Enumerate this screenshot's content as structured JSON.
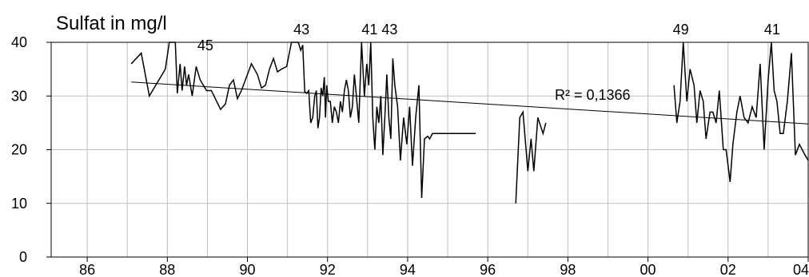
{
  "chart_data": {
    "type": "line",
    "title": "Sulfat in mg/l",
    "xlabel": "",
    "ylabel": "Sulfat in mg/l",
    "xlim": [
      1985.1,
      2004.0
    ],
    "ylim": [
      0,
      40
    ],
    "x_ticks": [
      {
        "value": 1986,
        "label": "86"
      },
      {
        "value": 1988,
        "label": "88"
      },
      {
        "value": 1990,
        "label": "90"
      },
      {
        "value": 1992,
        "label": "92"
      },
      {
        "value": 1994,
        "label": "94"
      },
      {
        "value": 1996,
        "label": "96"
      },
      {
        "value": 1998,
        "label": "98"
      },
      {
        "value": 2000,
        "label": "00"
      },
      {
        "value": 2002,
        "label": "02"
      },
      {
        "value": 2004,
        "label": "04"
      }
    ],
    "y_ticks": [
      {
        "value": 0,
        "label": "0"
      },
      {
        "value": 10,
        "label": "10"
      },
      {
        "value": 20,
        "label": "20"
      },
      {
        "value": 30,
        "label": "30"
      },
      {
        "value": 40,
        "label": "40"
      }
    ],
    "grid": true,
    "segments": [
      {
        "x": [
          1987.1,
          1987.35,
          1987.55,
          1987.95,
          1988.05,
          1988.2,
          1988.25,
          1988.32,
          1988.37,
          1988.43,
          1988.48,
          1988.53,
          1988.62,
          1988.72,
          1988.82,
          1988.98,
          1989.1,
          1989.2,
          1989.33,
          1989.45,
          1989.55,
          1989.65,
          1989.75,
          1989.85,
          1989.95,
          1990.1,
          1990.25,
          1990.35,
          1990.45,
          1990.55,
          1990.65,
          1990.75,
          1990.85,
          1990.98,
          1991.1,
          1991.2,
          1991.27,
          1991.33,
          1991.38,
          1991.43,
          1991.48,
          1991.53,
          1991.58,
          1991.63,
          1991.68,
          1991.72,
          1991.76,
          1991.8,
          1991.84,
          1991.88,
          1991.92,
          1991.95,
          1991.98,
          1992.02,
          1992.07,
          1992.12,
          1992.17,
          1992.22,
          1992.27,
          1992.32,
          1992.37,
          1992.42,
          1992.47,
          1992.52,
          1992.57,
          1992.62,
          1992.67,
          1992.72,
          1992.78,
          1992.85,
          1992.92,
          1992.98,
          1993.03,
          1993.08,
          1993.13,
          1993.18,
          1993.23,
          1993.28,
          1993.33,
          1993.38,
          1993.43,
          1993.48,
          1993.53,
          1993.58,
          1993.63,
          1993.68,
          1993.75,
          1993.82,
          1993.9,
          1993.98,
          1994.05,
          1994.12,
          1994.2,
          1994.28,
          1994.35,
          1994.42,
          1994.5,
          1994.55,
          1994.62,
          1994.7,
          1994.78,
          1994.85,
          1994.92,
          1995.0,
          1995.07,
          1995.15,
          1995.22,
          1995.3,
          1995.38,
          1995.45,
          1995.55,
          1995.7
        ],
        "y": [
          36,
          38,
          30,
          35,
          41,
          41,
          30.5,
          36,
          31,
          35.5,
          32,
          34,
          30,
          35.5,
          33,
          31,
          31,
          29.5,
          27.5,
          28.5,
          32,
          33,
          29.5,
          31,
          33,
          36,
          34,
          31.5,
          32,
          35,
          37,
          34.5,
          35,
          35.5,
          41,
          41,
          40,
          38.5,
          39.5,
          30.8,
          30.5,
          31,
          25,
          26,
          30,
          31,
          24,
          26,
          31.5,
          30,
          33.5,
          26,
          32,
          29,
          29,
          25,
          28,
          27,
          25,
          29,
          27,
          31,
          33,
          31,
          26,
          28,
          34,
          30,
          25,
          40,
          30,
          36,
          32,
          42,
          26,
          20,
          28,
          25,
          30,
          19,
          26,
          34,
          26,
          22,
          37,
          32,
          28,
          18,
          26,
          21,
          28,
          17,
          26,
          32,
          11,
          22,
          22.5,
          22,
          23,
          23,
          23,
          23,
          23,
          23,
          23,
          23,
          23,
          23,
          23,
          23,
          23,
          23
        ]
      },
      {
        "x": [
          1996.7,
          1996.8,
          1996.88,
          1997.0,
          1997.08,
          1997.15,
          1997.25,
          1997.38,
          1997.45
        ],
        "y": [
          10,
          26,
          27,
          16,
          22,
          16,
          26,
          23,
          25
        ]
      },
      {
        "x": [
          2000.65,
          2000.72,
          2000.8,
          2000.88,
          2000.97,
          2001.05,
          2001.15,
          2001.22,
          2001.3,
          2001.38,
          2001.45,
          2001.55,
          2001.62,
          2001.7,
          2001.78,
          2001.88,
          2001.95,
          2002.05,
          2002.12,
          2002.22,
          2002.3,
          2002.4,
          2002.5,
          2002.6,
          2002.7,
          2002.8,
          2002.9,
          2003.0,
          2003.08,
          2003.15,
          2003.22,
          2003.3,
          2003.38,
          2003.48,
          2003.58,
          2003.68,
          2003.78,
          2003.85,
          2003.92,
          2004.0
        ],
        "y": [
          32,
          25,
          29,
          40,
          29,
          35,
          32,
          25,
          31,
          29,
          22,
          27,
          27,
          25,
          31,
          20,
          20,
          14,
          21,
          27,
          30,
          26,
          25,
          28,
          26,
          36,
          20,
          33,
          41,
          31,
          29,
          23,
          23,
          29,
          38,
          19,
          21,
          20,
          19,
          18
        ]
      }
    ],
    "trendline": {
      "label": "R² = 0,1366",
      "x": [
        1987.1,
        2004.0
      ],
      "y": [
        32.6,
        24.8
      ]
    },
    "annotations": [
      {
        "text": "45",
        "x": 1988.95,
        "y": 41
      },
      {
        "text": "43",
        "x": 1991.35,
        "y": 43
      },
      {
        "text": "41",
        "x": 1993.05,
        "y": 41
      },
      {
        "text": "43",
        "x": 1993.55,
        "y": 43
      },
      {
        "text": "49",
        "x": 2000.82,
        "y": 49
      },
      {
        "text": "41",
        "x": 2003.1,
        "y": 41
      }
    ],
    "colors": {
      "line": "#000000",
      "grid": "#c0c0c0",
      "frame": "#000000",
      "background": "#ffffff"
    }
  }
}
